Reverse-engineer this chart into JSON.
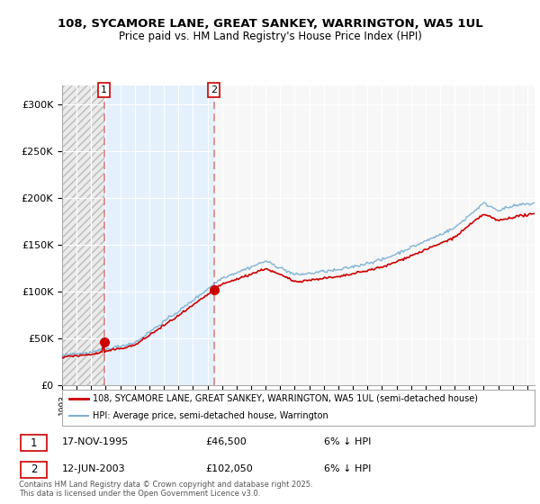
{
  "title_line1": "108, SYCAMORE LANE, GREAT SANKEY, WARRINGTON, WA5 1UL",
  "title_line2": "Price paid vs. HM Land Registry's House Price Index (HPI)",
  "ylim": [
    0,
    320000
  ],
  "yticks": [
    0,
    50000,
    100000,
    150000,
    200000,
    250000,
    300000
  ],
  "ytick_labels": [
    "£0",
    "£50K",
    "£100K",
    "£150K",
    "£200K",
    "£250K",
    "£300K"
  ],
  "hpi_color": "#7bafd4",
  "price_color": "#cc0000",
  "dashed_line_color": "#e08080",
  "annotation_box_color": "#cc0000",
  "sale1_date_num": 1995.88,
  "sale1_price": 46500,
  "sale1_label": "1",
  "sale1_date_str": "17-NOV-1995",
  "sale1_price_str": "£46,500",
  "sale1_hpi_str": "6% ↓ HPI",
  "sale2_date_num": 2003.44,
  "sale2_price": 102050,
  "sale2_label": "2",
  "sale2_date_str": "12-JUN-2003",
  "sale2_price_str": "£102,050",
  "sale2_hpi_str": "6% ↓ HPI",
  "legend_line1": "108, SYCAMORE LANE, GREAT SANKEY, WARRINGTON, WA5 1UL (semi-detached house)",
  "legend_line2": "HPI: Average price, semi-detached house, Warrington",
  "footer": "Contains HM Land Registry data © Crown copyright and database right 2025.\nThis data is licensed under the Open Government Licence v3.0.",
  "xmin": 1993,
  "xmax": 2025.5,
  "shaded_bg_color": "#ddeeff",
  "hatch_color": "#cccccc",
  "grid_color": "#dddddd",
  "plot_bg_color": "#f7f7f7"
}
